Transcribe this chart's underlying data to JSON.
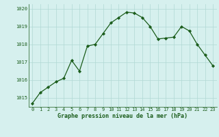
{
  "x": [
    0,
    1,
    2,
    3,
    4,
    5,
    6,
    7,
    8,
    9,
    10,
    11,
    12,
    13,
    14,
    15,
    16,
    17,
    18,
    19,
    20,
    21,
    22,
    23
  ],
  "y": [
    1014.7,
    1015.3,
    1015.6,
    1015.9,
    1016.1,
    1017.1,
    1016.5,
    1017.9,
    1018.0,
    1018.6,
    1019.2,
    1019.5,
    1019.8,
    1019.75,
    1019.5,
    1019.0,
    1018.3,
    1018.35,
    1018.4,
    1019.0,
    1018.75,
    1018.0,
    1017.4,
    1016.8
  ],
  "line_color": "#1a5c1a",
  "marker_color": "#1a5c1a",
  "bg_color": "#d6f0ee",
  "grid_color": "#b0d8d4",
  "xlabel": "Graphe pression niveau de la mer (hPa)",
  "xlabel_color": "#1a5c1a",
  "tick_color": "#1a5c1a",
  "ylim": [
    1014.5,
    1020.25
  ],
  "yticks": [
    1015,
    1016,
    1017,
    1018,
    1019,
    1020
  ],
  "xticks": [
    0,
    1,
    2,
    3,
    4,
    5,
    6,
    7,
    8,
    9,
    10,
    11,
    12,
    13,
    14,
    15,
    16,
    17,
    18,
    19,
    20,
    21,
    22,
    23
  ]
}
